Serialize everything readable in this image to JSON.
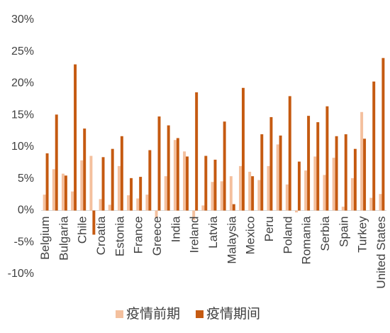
{
  "chart_data": {
    "type": "bar",
    "categories": [
      "Belgium",
      null,
      "Bulgaria",
      null,
      "Chile",
      null,
      "Croatia",
      null,
      "Estonia",
      null,
      "France",
      null,
      "Greece",
      null,
      "India",
      null,
      "Ireland",
      null,
      "Latvia",
      null,
      "Malaysia",
      null,
      "Mexico",
      null,
      "Peru",
      null,
      "Poland",
      null,
      "Romania",
      null,
      "Serbia",
      null,
      "Spain",
      null,
      "Turkey",
      null,
      "United States"
    ],
    "series": [
      {
        "name": "疫情前期",
        "color": "#f4c09e",
        "values": [
          2.5,
          6.5,
          5.8,
          3.0,
          7.9,
          8.6,
          1.8,
          0.9,
          7.0,
          2.4,
          1.9,
          2.5,
          -1.2,
          5.4,
          11.1,
          9.3,
          -1.5,
          0.8,
          4.5,
          4.6,
          5.4,
          7.0,
          6.1,
          4.8,
          7.0,
          10.4,
          4.1,
          -0.3,
          6.3,
          8.5,
          5.6,
          8.3,
          0.6,
          5.1,
          15.5,
          2.0,
          2.6
        ]
      },
      {
        "name": "疫情期间",
        "color": "#c55a11",
        "values": [
          9.0,
          15.1,
          5.5,
          23.0,
          12.9,
          -3.8,
          8.4,
          9.7,
          11.7,
          5.1,
          5.3,
          9.5,
          14.8,
          13.4,
          11.4,
          8.5,
          18.6,
          8.6,
          8.0,
          14.0,
          1.0,
          19.3,
          5.4,
          12.0,
          14.7,
          11.8,
          18.0,
          7.7,
          14.9,
          13.9,
          16.4,
          11.7,
          12.0,
          9.7,
          11.3,
          20.3,
          24.0
        ]
      }
    ],
    "ylim": [
      -10,
      30
    ],
    "yticks": [
      {
        "value": -10,
        "label": "-10%"
      },
      {
        "value": -5,
        "label": "-5%"
      },
      {
        "value": 0,
        "label": "0%"
      },
      {
        "value": 5,
        "label": "5%"
      },
      {
        "value": 10,
        "label": "10%"
      },
      {
        "value": 15,
        "label": "15%"
      },
      {
        "value": 20,
        "label": "20%"
      },
      {
        "value": 25,
        "label": "25%"
      },
      {
        "value": 30,
        "label": "30%"
      }
    ],
    "grid": false,
    "legend": "bottom"
  }
}
